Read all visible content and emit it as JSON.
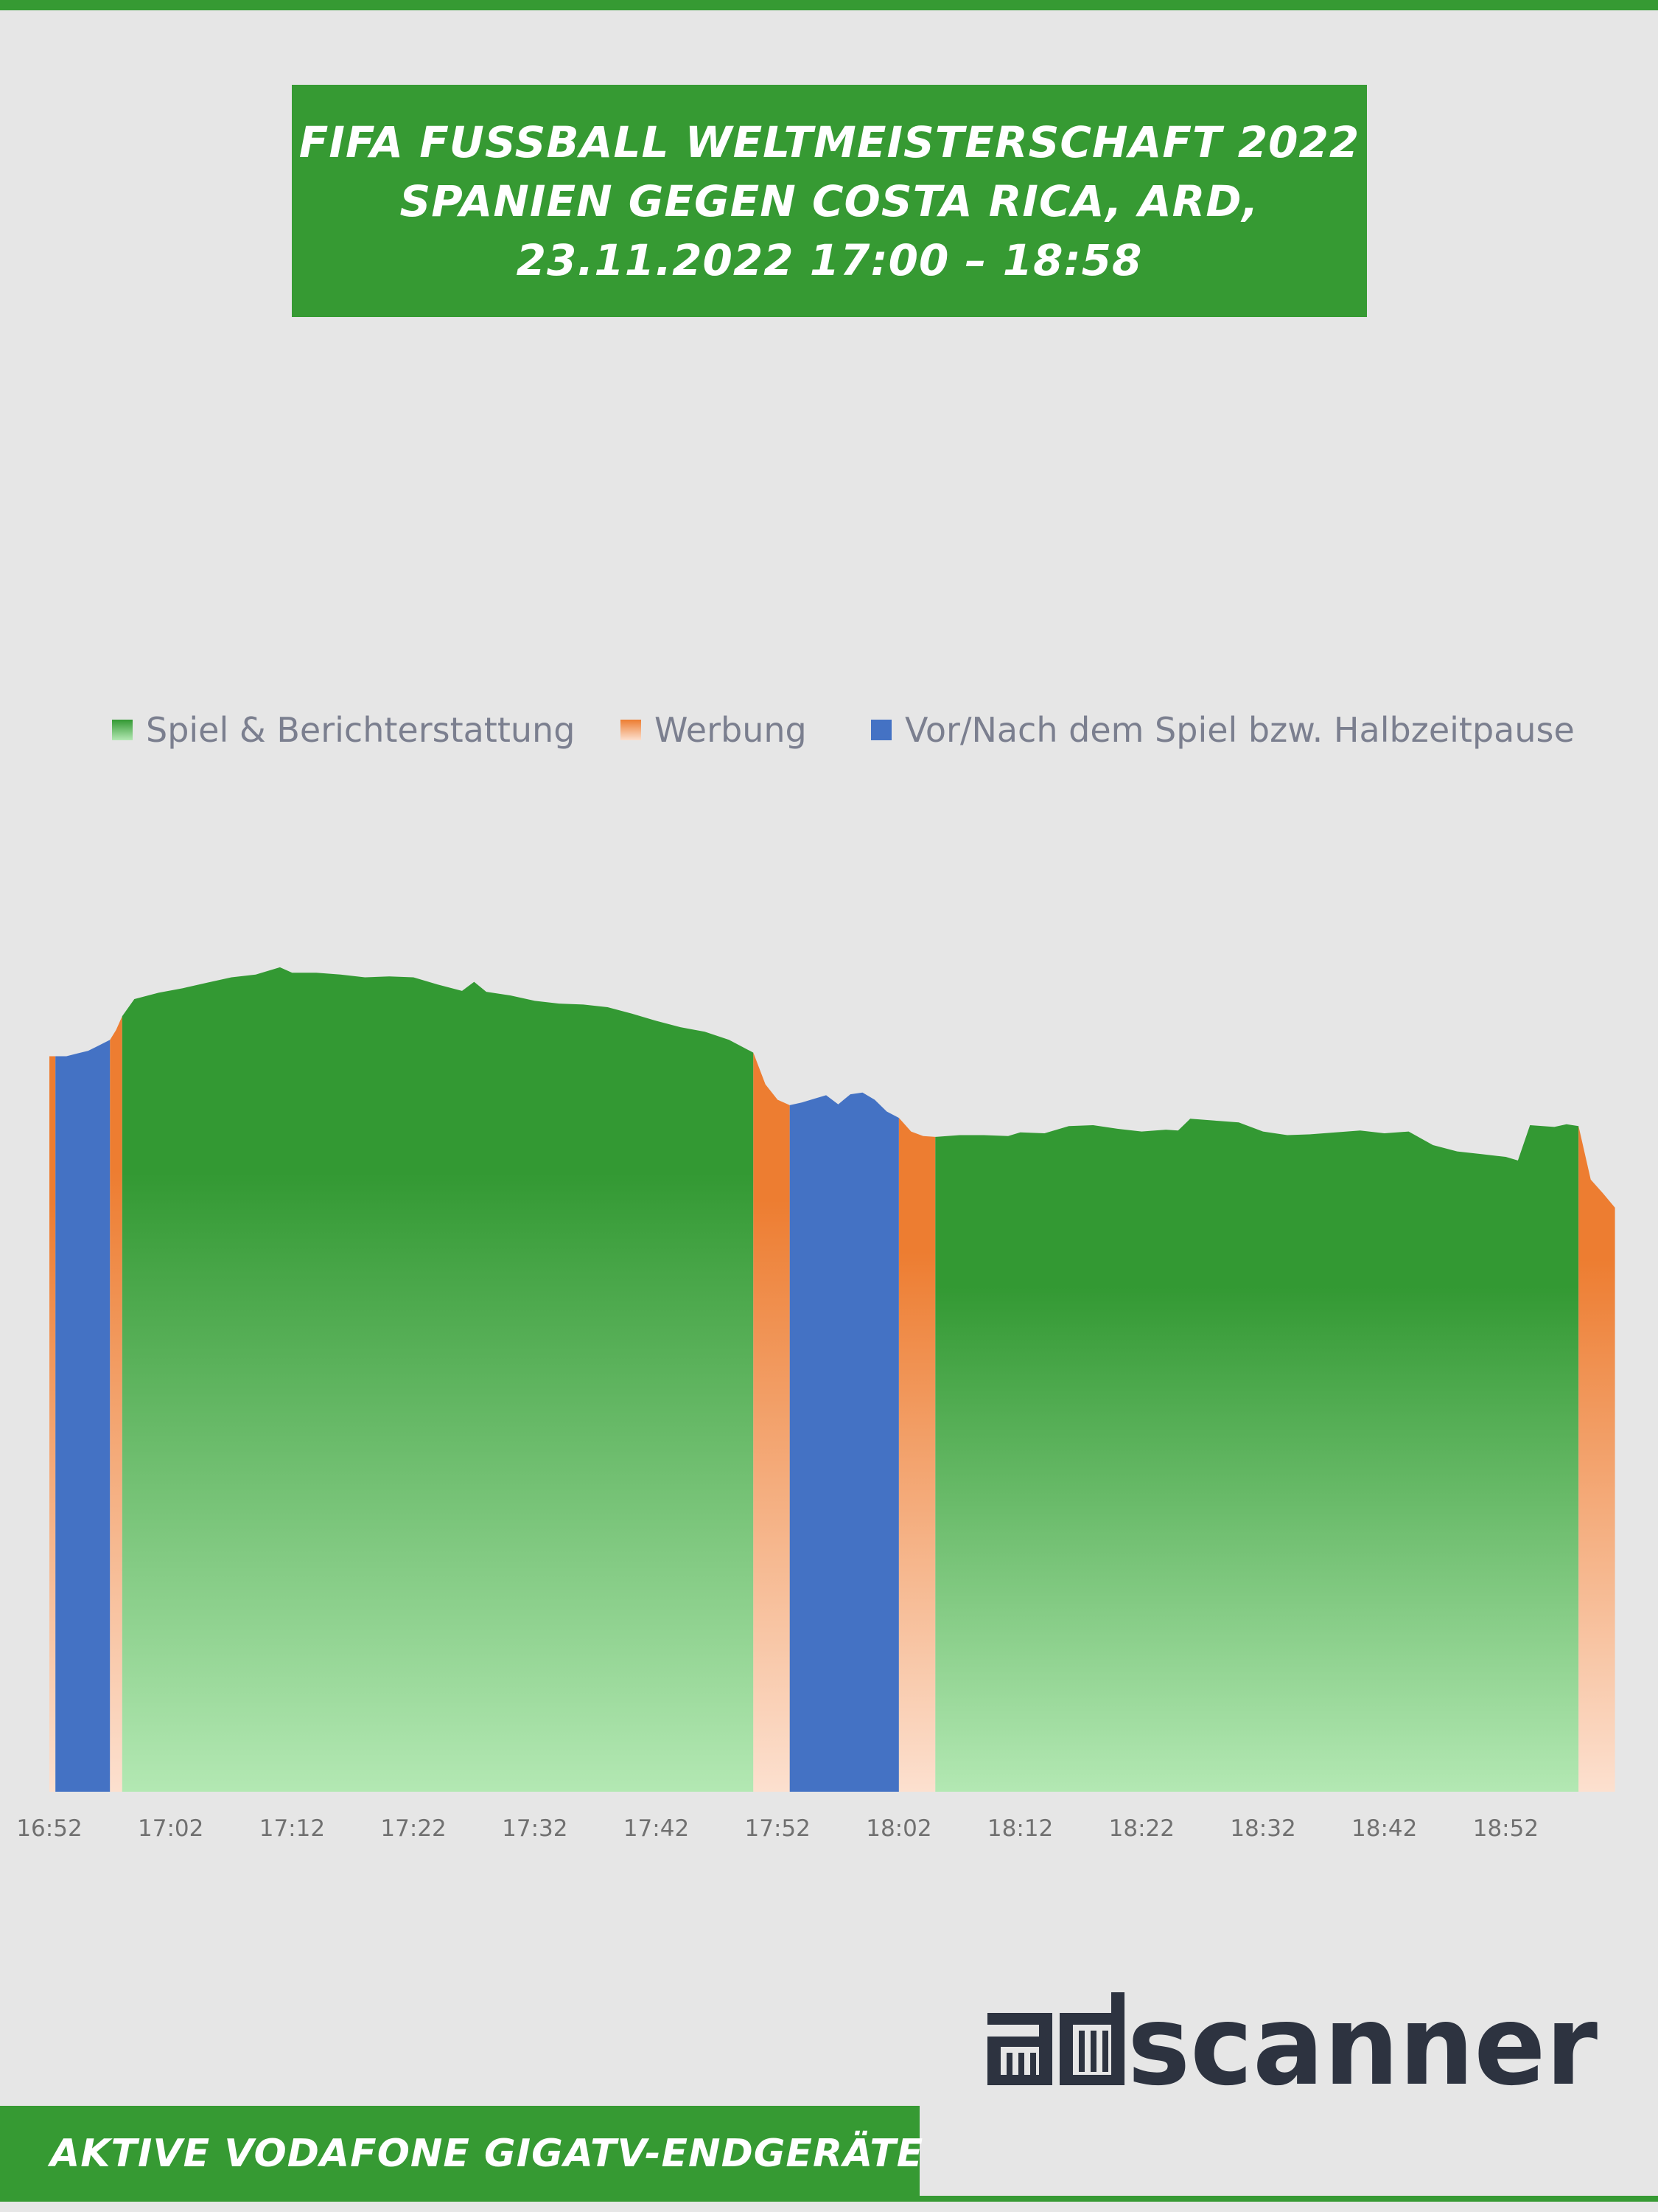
{
  "title": {
    "line1": "FIFA FUSSBALL WELTMEISTERSCHAFT 2022",
    "line2": "SPANIEN GEGEN COSTA RICA, ARD,",
    "line3": "23.11.2022 17:00 – 18:58"
  },
  "footer": {
    "text": "AKTIVE VODAFONE GIGATV-ENDGERÄTE"
  },
  "logo": {
    "text": "adscanner"
  },
  "colors": {
    "background": "#e6e6e6",
    "brand_green": "#369a33",
    "game": "#339933",
    "game_light": "#b3e8b3",
    "ads": "#ed7d31",
    "ads_light": "#fce0cf",
    "prepost": "#4472c4",
    "axis_text": "#707070",
    "legend_text": "#7b7f8f",
    "logo_text": "#2d3340"
  },
  "chart_data": {
    "type": "area",
    "ylim": [
      0,
      100
    ],
    "x_ticks": [
      "16:52",
      "17:02",
      "17:12",
      "17:22",
      "17:32",
      "17:42",
      "17:52",
      "18:02",
      "18:12",
      "18:22",
      "18:32",
      "18:42",
      "18:52"
    ],
    "legend": {
      "position": "top",
      "entries": [
        {
          "key": "game",
          "name": "Spiel & Berichterstattung"
        },
        {
          "key": "ads",
          "name": "Werbung"
        },
        {
          "key": "prepost",
          "name": "Vor/Nach dem Spiel bzw. Halbzeitpause"
        }
      ]
    },
    "series": [
      {
        "key": "ads",
        "start": "16:52",
        "end": "16:52.5",
        "values": [
          81.1,
          81.1
        ]
      },
      {
        "key": "prepost",
        "start": "16:52.5",
        "end": "16:57",
        "values": [
          81.1,
          81.1,
          81.4,
          81.7,
          82.3,
          82.9
        ]
      },
      {
        "key": "ads",
        "start": "16:57",
        "end": "16:58",
        "values": [
          82.9,
          84.0,
          85.5
        ]
      },
      {
        "key": "game",
        "start": "16:58",
        "end": "17:50",
        "values": [
          [
            0,
            85.5
          ],
          [
            1,
            87.4
          ],
          [
            3,
            88.1
          ],
          [
            5,
            88.6
          ],
          [
            7,
            89.2
          ],
          [
            9,
            89.8
          ],
          [
            11,
            90.1
          ],
          [
            13,
            90.9
          ],
          [
            14,
            90.3
          ],
          [
            16,
            90.3
          ],
          [
            18,
            90.1
          ],
          [
            20,
            89.8
          ],
          [
            22,
            89.9
          ],
          [
            24,
            89.8
          ],
          [
            26,
            89.0
          ],
          [
            28,
            88.3
          ],
          [
            29,
            89.3
          ],
          [
            30,
            88.2
          ],
          [
            32,
            87.8
          ],
          [
            34,
            87.2
          ],
          [
            36,
            86.9
          ],
          [
            38,
            86.8
          ],
          [
            40,
            86.5
          ],
          [
            42,
            85.8
          ],
          [
            44,
            85.0
          ],
          [
            46,
            84.3
          ],
          [
            48,
            83.8
          ],
          [
            50,
            82.9
          ],
          [
            52,
            81.5
          ]
        ]
      },
      {
        "key": "ads",
        "start": "17:50",
        "end": "17:53",
        "values": [
          81.5,
          78.0,
          76.3,
          75.7
        ]
      },
      {
        "key": "prepost",
        "start": "17:53",
        "end": "18:02",
        "values": [
          [
            0,
            75.7
          ],
          [
            1,
            76.0
          ],
          [
            2,
            76.4
          ],
          [
            3,
            76.8
          ],
          [
            4,
            75.8
          ],
          [
            5,
            76.9
          ],
          [
            6,
            77.1
          ],
          [
            7,
            76.3
          ],
          [
            8,
            75.0
          ],
          [
            9,
            74.3
          ]
        ]
      },
      {
        "key": "ads",
        "start": "18:02",
        "end": "18:05",
        "values": [
          74.3,
          72.8,
          72.3,
          72.2
        ]
      },
      {
        "key": "game",
        "start": "18:05",
        "end": "18:58",
        "values": [
          [
            0,
            72.2
          ],
          [
            2,
            72.4
          ],
          [
            4,
            72.4
          ],
          [
            6,
            72.3
          ],
          [
            7,
            72.7
          ],
          [
            9,
            72.6
          ],
          [
            11,
            73.4
          ],
          [
            13,
            73.5
          ],
          [
            15,
            73.1
          ],
          [
            17,
            72.8
          ],
          [
            19,
            73.0
          ],
          [
            20,
            72.9
          ],
          [
            21,
            74.2
          ],
          [
            23,
            74.0
          ],
          [
            25,
            73.8
          ],
          [
            27,
            72.8
          ],
          [
            29,
            72.4
          ],
          [
            31,
            72.5
          ],
          [
            33,
            72.7
          ],
          [
            35,
            72.9
          ],
          [
            37,
            72.6
          ],
          [
            39,
            72.8
          ],
          [
            41,
            71.3
          ],
          [
            43,
            70.6
          ],
          [
            45,
            70.3
          ],
          [
            47,
            70.0
          ],
          [
            48,
            69.6
          ],
          [
            49,
            73.5
          ],
          [
            51,
            73.3
          ],
          [
            52,
            73.6
          ],
          [
            53,
            73.4
          ]
        ]
      },
      {
        "key": "ads",
        "start": "18:58",
        "end": "19:01",
        "values": [
          73.4,
          67.5,
          66.0,
          64.4
        ]
      }
    ]
  }
}
